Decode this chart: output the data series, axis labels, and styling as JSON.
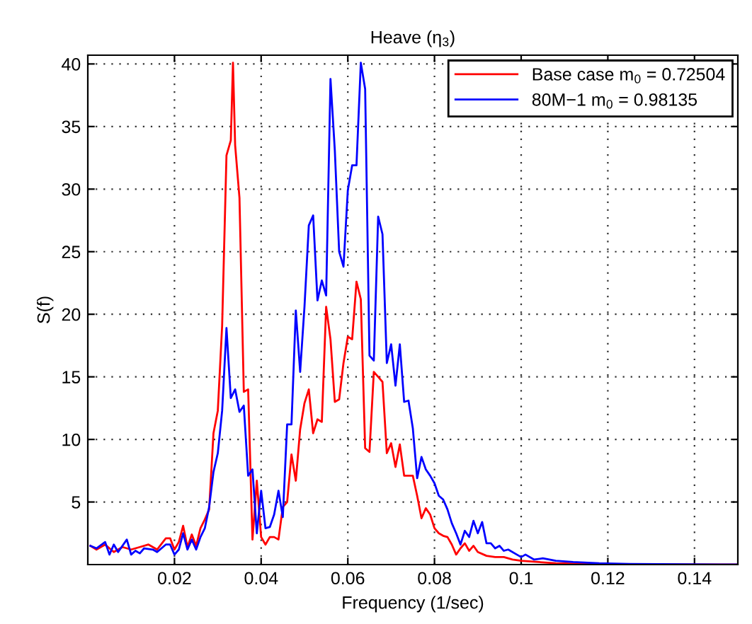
{
  "chart_data": {
    "type": "line",
    "title": "Heave (η$_{3}$)",
    "xlabel": "Frequency (1/sec)",
    "ylabel": "S(f)",
    "xlim": [
      0,
      0.15
    ],
    "ylim": [
      0,
      40.7
    ],
    "xticks": [
      0.02,
      0.04,
      0.06,
      0.08,
      0.1,
      0.12,
      0.14
    ],
    "yticks": [
      5,
      10,
      15,
      20,
      25,
      30,
      35,
      40
    ],
    "grid": true,
    "legend": "top right",
    "line_style": "solid",
    "marker": "none",
    "series": [
      {
        "name": "Base case m$_{0}$ = 0.72504",
        "color": "#ff0000",
        "x": [
          0.0006,
          0.002,
          0.004,
          0.006,
          0.008,
          0.01,
          0.012,
          0.014,
          0.016,
          0.018,
          0.019,
          0.02,
          0.021,
          0.022,
          0.023,
          0.024,
          0.025,
          0.026,
          0.027,
          0.028,
          0.029,
          0.03,
          0.031,
          0.032,
          0.033,
          0.0335,
          0.034,
          0.035,
          0.036,
          0.037,
          0.038,
          0.039,
          0.04,
          0.041,
          0.042,
          0.043,
          0.044,
          0.045,
          0.046,
          0.047,
          0.048,
          0.049,
          0.05,
          0.051,
          0.052,
          0.053,
          0.054,
          0.055,
          0.056,
          0.057,
          0.058,
          0.059,
          0.06,
          0.061,
          0.062,
          0.063,
          0.064,
          0.065,
          0.066,
          0.067,
          0.068,
          0.069,
          0.07,
          0.071,
          0.072,
          0.073,
          0.074,
          0.075,
          0.076,
          0.077,
          0.078,
          0.079,
          0.08,
          0.081,
          0.082,
          0.083,
          0.084,
          0.085,
          0.086,
          0.087,
          0.088,
          0.089,
          0.09,
          0.092,
          0.094,
          0.096,
          0.098,
          0.1,
          0.104,
          0.108,
          0.115,
          0.12,
          0.15
        ],
        "values": [
          1.5,
          1.2,
          1.6,
          1.0,
          1.4,
          1.2,
          1.4,
          1.6,
          1.2,
          2.1,
          2.1,
          1.2,
          1.8,
          3.1,
          1.4,
          2.4,
          1.5,
          2.9,
          3.6,
          4.4,
          10.5,
          12.3,
          19.1,
          32.7,
          33.9,
          40.1,
          33.5,
          29.3,
          13.8,
          14.0,
          2.0,
          6.7,
          2.2,
          1.6,
          2.2,
          2.2,
          2.0,
          4.6,
          5.0,
          8.8,
          6.7,
          10.8,
          12.9,
          14.0,
          10.5,
          11.6,
          11.4,
          20.6,
          18.0,
          13.0,
          13.2,
          16.1,
          18.2,
          18.0,
          22.6,
          21.2,
          9.3,
          9.0,
          15.4,
          15.0,
          14.6,
          8.9,
          9.7,
          7.8,
          9.6,
          7.1,
          7.1,
          7.1,
          5.5,
          3.7,
          4.5,
          4.0,
          2.9,
          2.5,
          2.3,
          2.2,
          1.6,
          0.8,
          1.3,
          1.7,
          1.1,
          1.5,
          1.0,
          0.7,
          0.6,
          0.6,
          0.4,
          0.3,
          0.2,
          0.1,
          0.05,
          0.02,
          0.0
        ]
      },
      {
        "name": "80M−1 m$_{0}$ = 0.98135",
        "color": "#0000ff",
        "x": [
          0.0006,
          0.002,
          0.004,
          0.005,
          0.006,
          0.007,
          0.009,
          0.01,
          0.011,
          0.012,
          0.013,
          0.015,
          0.016,
          0.018,
          0.019,
          0.02,
          0.021,
          0.022,
          0.023,
          0.024,
          0.025,
          0.026,
          0.027,
          0.028,
          0.029,
          0.03,
          0.031,
          0.032,
          0.033,
          0.034,
          0.035,
          0.036,
          0.037,
          0.038,
          0.039,
          0.04,
          0.041,
          0.042,
          0.043,
          0.044,
          0.045,
          0.046,
          0.047,
          0.048,
          0.049,
          0.05,
          0.051,
          0.052,
          0.053,
          0.054,
          0.055,
          0.056,
          0.057,
          0.058,
          0.059,
          0.06,
          0.061,
          0.062,
          0.063,
          0.064,
          0.065,
          0.066,
          0.067,
          0.068,
          0.069,
          0.07,
          0.071,
          0.072,
          0.073,
          0.074,
          0.075,
          0.076,
          0.077,
          0.078,
          0.079,
          0.08,
          0.081,
          0.082,
          0.083,
          0.084,
          0.085,
          0.086,
          0.087,
          0.088,
          0.089,
          0.09,
          0.091,
          0.092,
          0.093,
          0.094,
          0.095,
          0.096,
          0.097,
          0.099,
          0.1,
          0.101,
          0.103,
          0.105,
          0.108,
          0.112,
          0.118,
          0.125,
          0.15
        ],
        "values": [
          1.5,
          1.3,
          1.8,
          0.8,
          1.6,
          1.0,
          2.0,
          0.8,
          1.1,
          0.9,
          1.3,
          1.2,
          1.0,
          1.6,
          1.6,
          0.8,
          1.2,
          2.5,
          1.2,
          2.0,
          1.2,
          2.2,
          2.9,
          4.6,
          7.4,
          8.9,
          12.3,
          18.9,
          13.3,
          14.0,
          12.2,
          12.7,
          7.1,
          7.6,
          2.5,
          5.9,
          2.9,
          3.0,
          4.0,
          5.9,
          3.8,
          11.2,
          11.2,
          20.3,
          15.4,
          20.6,
          27.1,
          27.9,
          21.1,
          22.7,
          21.5,
          38.8,
          33.1,
          25.0,
          23.8,
          29.9,
          31.9,
          31.9,
          40.1,
          38.0,
          16.7,
          16.3,
          27.8,
          26.4,
          16.1,
          17.6,
          14.3,
          17.6,
          13.0,
          13.1,
          10.9,
          6.9,
          8.6,
          7.6,
          7.1,
          6.5,
          5.5,
          5.2,
          4.4,
          3.3,
          2.5,
          1.6,
          2.7,
          2.2,
          3.5,
          2.5,
          3.4,
          1.7,
          1.7,
          1.3,
          1.5,
          1.1,
          1.2,
          0.8,
          0.6,
          0.8,
          0.4,
          0.5,
          0.3,
          0.2,
          0.1,
          0.05,
          0.0
        ]
      }
    ]
  }
}
